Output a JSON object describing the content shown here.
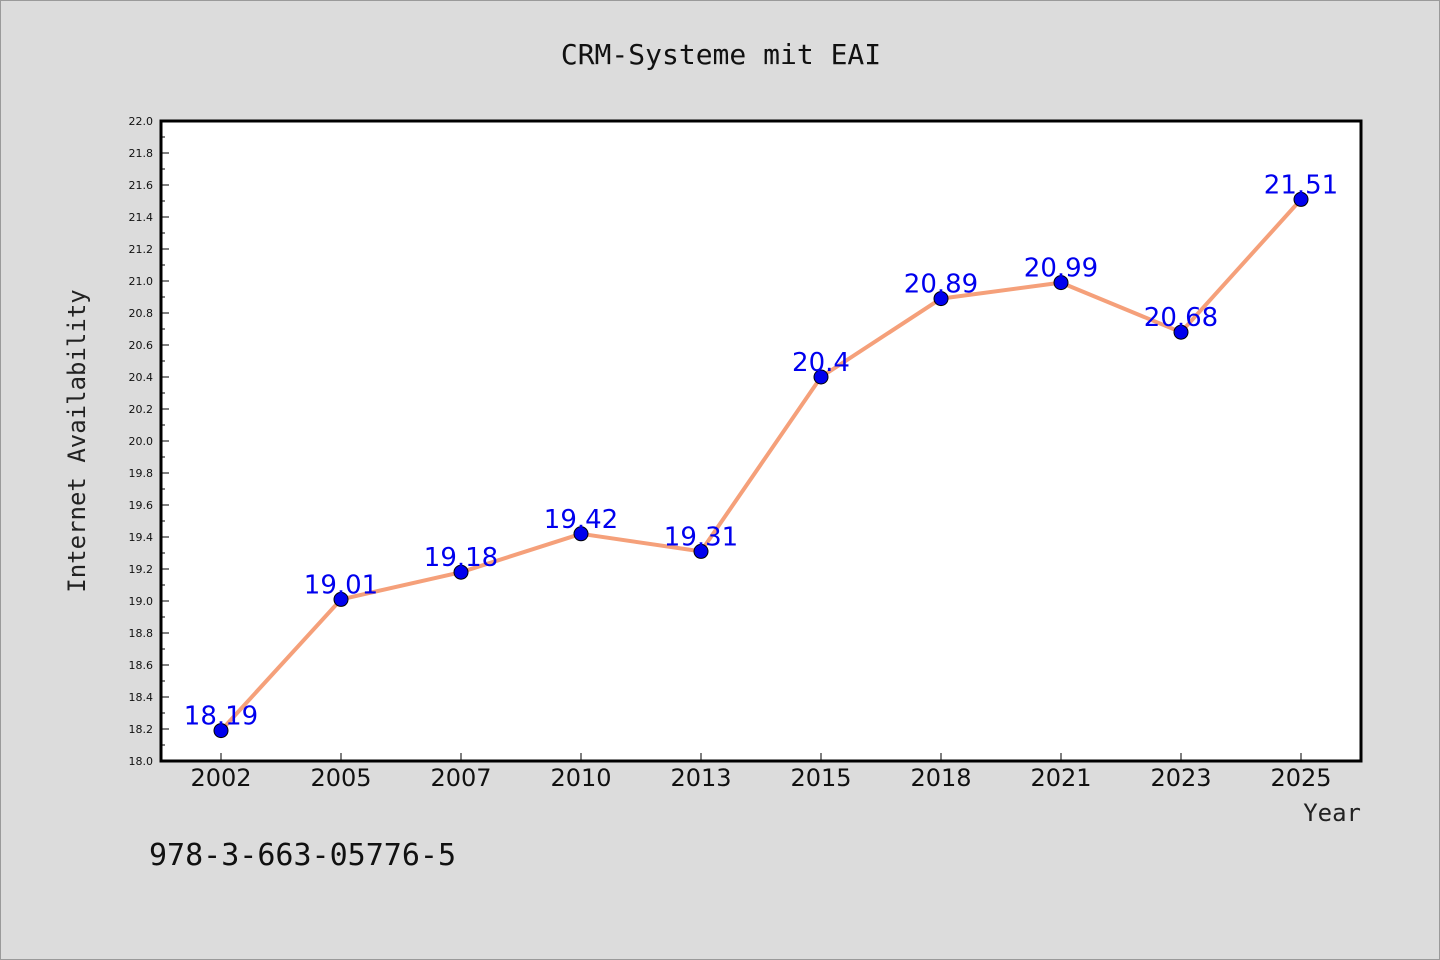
{
  "chart_data": {
    "type": "line",
    "title": "CRM-Systeme mit EAI",
    "xlabel": "Year",
    "ylabel": "Internet Availability",
    "categories": [
      "2002",
      "2005",
      "2007",
      "2010",
      "2013",
      "2015",
      "2018",
      "2021",
      "2023",
      "2025"
    ],
    "series": [
      {
        "values": [
          18.19,
          19.01,
          19.18,
          19.42,
          19.31,
          20.4,
          20.89,
          20.99,
          20.68,
          21.51
        ]
      }
    ],
    "data_labels": [
      "18.19",
      "19.01",
      "19.18",
      "19.42",
      "19.31",
      "20.4",
      "20.89",
      "20.99",
      "20.68",
      "21.51"
    ],
    "ylim": [
      18.0,
      22.0
    ],
    "yticks": [
      "18.0",
      "18.2",
      "18.4",
      "18.6",
      "18.8",
      "19.0",
      "19.2",
      "19.4",
      "19.6",
      "19.8",
      "20.0",
      "20.2",
      "20.4",
      "20.6",
      "20.8",
      "21.0",
      "21.2",
      "21.4",
      "21.6",
      "21.8",
      "22.0"
    ],
    "grid": false,
    "legend": "none",
    "line_color": "#f5a07a",
    "marker_color": "#0000ee",
    "label_color": "#0000ee"
  },
  "footer": {
    "text": "978-3-663-05776-5"
  }
}
